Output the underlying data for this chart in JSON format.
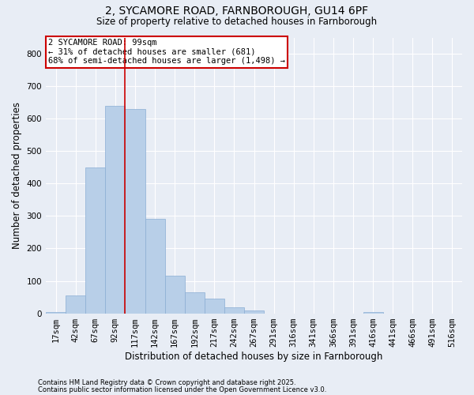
{
  "title_line1": "2, SYCAMORE ROAD, FARNBOROUGH, GU14 6PF",
  "title_line2": "Size of property relative to detached houses in Farnborough",
  "xlabel": "Distribution of detached houses by size in Farnborough",
  "ylabel": "Number of detached properties",
  "bins": [
    "17sqm",
    "42sqm",
    "67sqm",
    "92sqm",
    "117sqm",
    "142sqm",
    "167sqm",
    "192sqm",
    "217sqm",
    "242sqm",
    "267sqm",
    "291sqm",
    "316sqm",
    "341sqm",
    "366sqm",
    "391sqm",
    "416sqm",
    "441sqm",
    "466sqm",
    "491sqm",
    "516sqm"
  ],
  "values": [
    5,
    55,
    450,
    640,
    630,
    290,
    115,
    65,
    45,
    18,
    8,
    0,
    0,
    0,
    0,
    0,
    5,
    0,
    0,
    0,
    0
  ],
  "bar_color": "#b8cfe8",
  "bar_edge_color": "#8aadd4",
  "bg_color": "#e8edf5",
  "grid_color": "#ffffff",
  "annotation_line1": "2 SYCAMORE ROAD: 99sqm",
  "annotation_line2": "← 31% of detached houses are smaller (681)",
  "annotation_line3": "68% of semi-detached houses are larger (1,498) →",
  "annotation_box_color": "#ffffff",
  "annotation_box_edge": "#cc0000",
  "vline_color": "#cc0000",
  "vline_x_index": 3.5,
  "footnote1": "Contains HM Land Registry data © Crown copyright and database right 2025.",
  "footnote2": "Contains public sector information licensed under the Open Government Licence v3.0.",
  "ylim": [
    0,
    850
  ],
  "yticks": [
    0,
    100,
    200,
    300,
    400,
    500,
    600,
    700,
    800
  ]
}
